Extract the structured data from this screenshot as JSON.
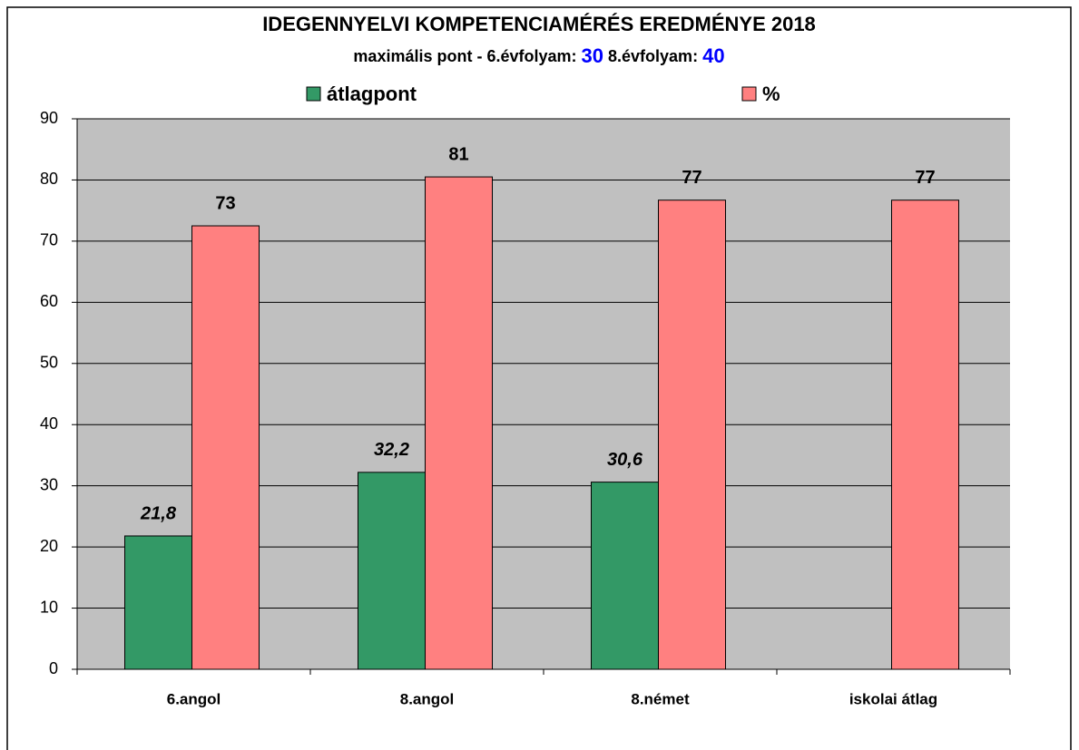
{
  "chart_data": {
    "type": "bar",
    "title": "IDEGENNYELVI KOMPETENCIAMÉRÉS EREDMÉNYE  2018",
    "subtitle_parts": [
      "maximális pont -   6.évfolyam:",
      "30",
      "8.évfolyam:",
      "40"
    ],
    "categories": [
      "6.angol",
      "8.angol",
      "8.német",
      "iskolai átlag"
    ],
    "series": [
      {
        "name": "átlagpont",
        "color": "#339966",
        "values": [
          21.8,
          32.2,
          30.6,
          null
        ],
        "value_labels": [
          "21,8",
          "32,2",
          "30,6",
          null
        ]
      },
      {
        "name": "%",
        "color": "#ff8080",
        "values": [
          72.5,
          80.5,
          76.7,
          76.7
        ],
        "value_labels": [
          "73",
          "81",
          "77",
          "77"
        ]
      }
    ],
    "ylim": [
      0,
      90
    ],
    "yticks": [
      0,
      10,
      20,
      30,
      40,
      50,
      60,
      70,
      80,
      90
    ],
    "grid": true,
    "legend": "top"
  }
}
